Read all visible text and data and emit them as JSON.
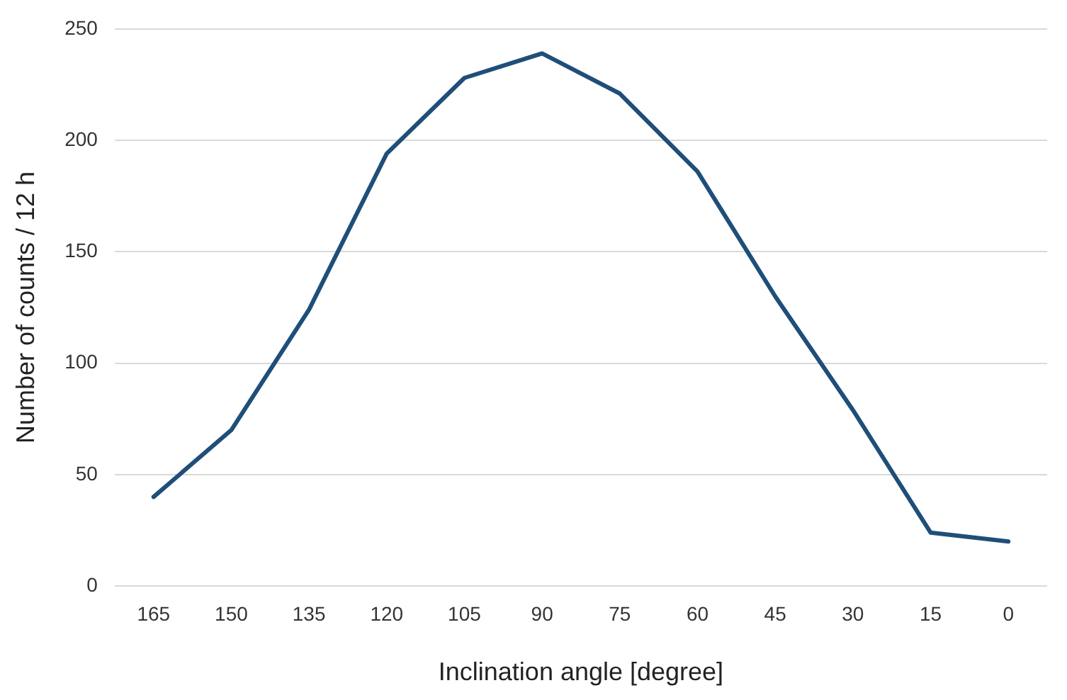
{
  "chart_data": {
    "type": "line",
    "xlabel": "Inclination angle [degree]",
    "ylabel": "Number of counts / 12 h",
    "categories": [
      "165",
      "150",
      "135",
      "120",
      "105",
      "90",
      "75",
      "60",
      "45",
      "30",
      "15",
      "0"
    ],
    "series": [
      {
        "color": "#1f4e79",
        "values": [
          40,
          70,
          124,
          194,
          228,
          239,
          221,
          186,
          130,
          79,
          24,
          20
        ]
      }
    ],
    "ylim": [
      0,
      250
    ],
    "yticks": [
      0,
      50,
      100,
      150,
      200,
      250
    ],
    "grid": "y",
    "legend": false,
    "marker": "none",
    "line_style": "solid"
  }
}
